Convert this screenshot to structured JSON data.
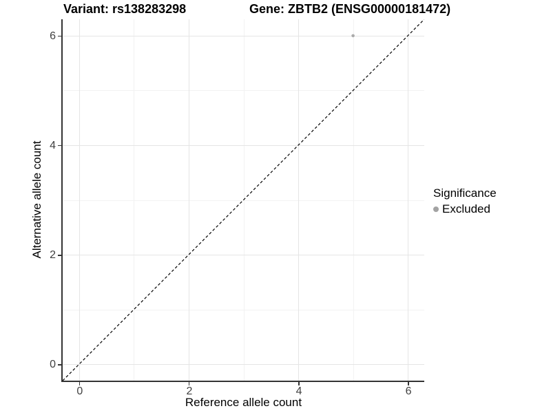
{
  "title": {
    "variant": "Variant: rs138283298",
    "gene": "Gene: ZBTB2 (ENSG00000181472)"
  },
  "chart_data": {
    "type": "scatter",
    "title": "Variant: rs138283298    Gene: ZBTB2 (ENSG00000181472)",
    "xlabel": "Reference allele count",
    "ylabel": "Alternative allele count",
    "xlim": [
      -0.3,
      6.3
    ],
    "ylim": [
      -0.3,
      6.3
    ],
    "x_major_ticks": [
      0,
      2,
      4,
      6
    ],
    "y_major_ticks": [
      0,
      2,
      4,
      6
    ],
    "x_minor_ticks": [
      1,
      3,
      5
    ],
    "y_minor_ticks": [
      1,
      3,
      5
    ],
    "grid": true,
    "series": [
      {
        "name": "Excluded",
        "points": [
          {
            "x": 5,
            "y": 6
          }
        ],
        "color": "#ababab",
        "marker": "circle",
        "marker_radius": 2.3
      }
    ],
    "reference_line": {
      "type": "identity",
      "style": "dashed",
      "from": [
        -0.3,
        -0.3
      ],
      "to": [
        6.3,
        6.3
      ],
      "color": "#000000"
    },
    "legend": {
      "title": "Significance",
      "position": "right",
      "entries": [
        {
          "label": "Excluded",
          "color": "#a3a3a3",
          "marker": "circle"
        }
      ]
    }
  },
  "colors": {
    "background": "#ffffff",
    "grid_major": "#e5e5e5",
    "grid_minor": "#f2f2f2",
    "axis_line": "#333333",
    "tick_label": "#404040",
    "point": "#ababab"
  }
}
